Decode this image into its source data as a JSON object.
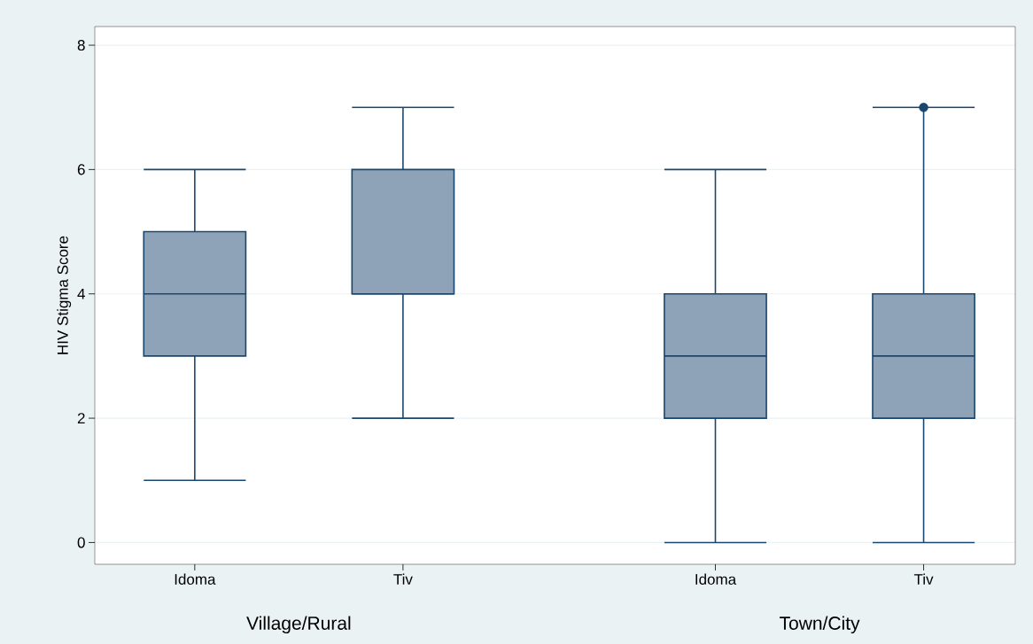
{
  "chart_data": {
    "type": "box",
    "ylabel": "HIV Stigma Score",
    "categories": [
      "Idoma",
      "Tiv",
      "Idoma",
      "Tiv"
    ],
    "annotations": [
      "Village/Rural",
      "Town/City"
    ],
    "boxes": [
      {
        "low": 1,
        "q1": 3,
        "median": 4,
        "q3": 5,
        "high": 6
      },
      {
        "low": 2,
        "q1": 4,
        "median": 4,
        "q3": 6,
        "high": 7
      },
      {
        "low": 0,
        "q1": 2,
        "median": 3,
        "q3": 4,
        "high": 6
      },
      {
        "low": 0,
        "q1": 2,
        "median": 3,
        "q3": 4,
        "high": 7,
        "outliers": [
          7
        ]
      }
    ],
    "color": "#8fa3b8",
    "ylim": [
      -0.35,
      8.3
    ],
    "yticks": [
      0,
      2,
      4,
      6,
      8
    ],
    "grid": "y"
  }
}
